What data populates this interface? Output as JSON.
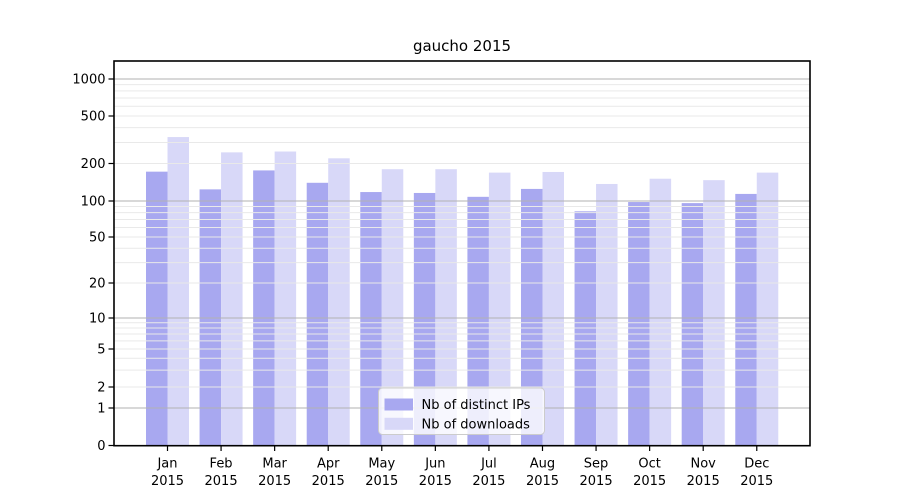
{
  "chart_data": {
    "type": "bar",
    "title": "gaucho 2015",
    "xlabel": "",
    "ylabel": "",
    "categories": [
      "Jan",
      "Feb",
      "Mar",
      "Apr",
      "May",
      "Jun",
      "Jul",
      "Aug",
      "Sep",
      "Oct",
      "Nov",
      "Dec"
    ],
    "x_tick_second_line": "2015",
    "series": [
      {
        "name": "Nb of distinct IPs",
        "color": "#a8a8f0",
        "values": [
          172,
          124,
          176,
          140,
          118,
          116,
          108,
          125,
          82,
          98,
          96,
          114
        ]
      },
      {
        "name": "Nb of downloads",
        "color": "#d8d8f8",
        "values": [
          333,
          248,
          252,
          221,
          180,
          180,
          169,
          171,
          137,
          151,
          147,
          169
        ]
      }
    ],
    "y_axis": {
      "scale": "symlog",
      "tick_labels": [
        "0",
        "1",
        "2",
        "5",
        "10",
        "20",
        "50",
        "100",
        "200",
        "500",
        "1000"
      ],
      "major_gridlines": [
        1,
        10,
        100,
        1000
      ],
      "ylim": [
        0,
        1400
      ]
    },
    "legend": {
      "position": "lower-center-inside"
    },
    "grid": true
  }
}
